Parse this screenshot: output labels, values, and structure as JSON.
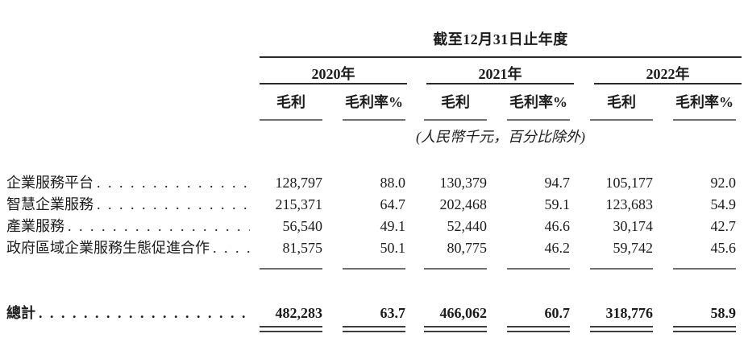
{
  "table": {
    "title": "截至12月31日止年度",
    "unit_note": "(人民幣千元，百分比除外)",
    "groups": [
      {
        "year": "2020年",
        "columns": [
          "毛利",
          "毛利率%"
        ]
      },
      {
        "year": "2021年",
        "columns": [
          "毛利",
          "毛利率%"
        ]
      },
      {
        "year": "2022年",
        "columns": [
          "毛利",
          "毛利率%"
        ]
      }
    ],
    "rows": [
      {
        "label": "企業服務平台",
        "values": [
          "128,797",
          "88.0",
          "130,379",
          "94.7",
          "105,177",
          "92.0"
        ]
      },
      {
        "label": "智慧企業服務",
        "values": [
          "215,371",
          "64.7",
          "202,468",
          "59.1",
          "123,683",
          "54.9"
        ]
      },
      {
        "label": "產業服務",
        "values": [
          "56,540",
          "49.1",
          "52,440",
          "46.6",
          "30,174",
          "42.7"
        ]
      },
      {
        "label": "政府區域企業服務生態促進合作",
        "values": [
          "81,575",
          "50.1",
          "80,775",
          "46.2",
          "59,742",
          "45.6"
        ]
      }
    ],
    "total_row": {
      "label": "總計",
      "values": [
        "482,283",
        "63.7",
        "466,062",
        "60.7",
        "318,776",
        "58.9"
      ]
    }
  }
}
